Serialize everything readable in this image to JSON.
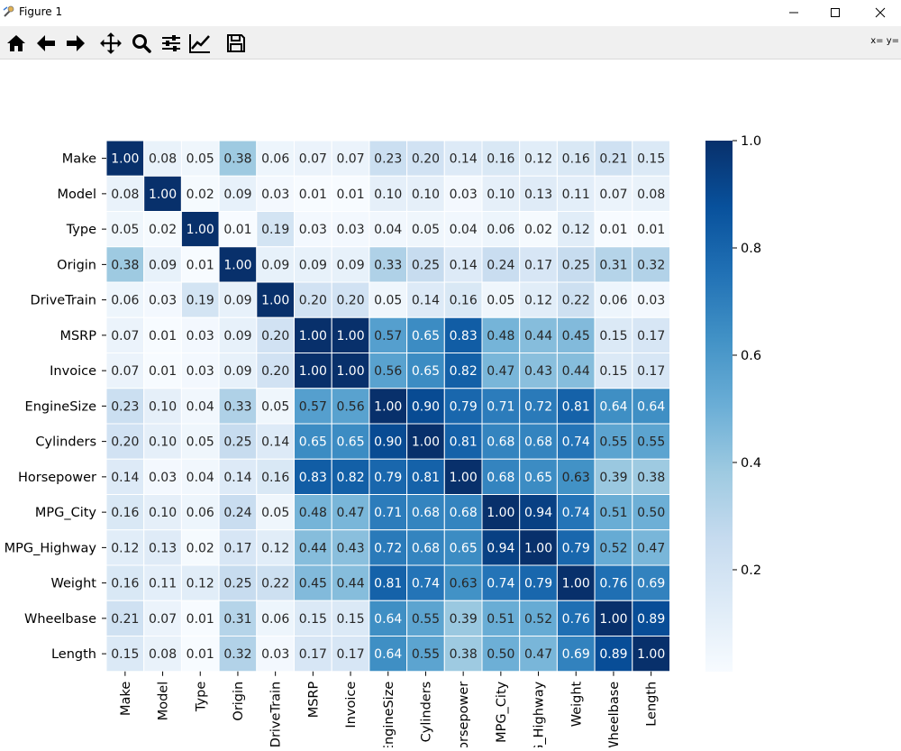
{
  "window": {
    "title": "Figure 1",
    "coord_readout": "x= y="
  },
  "toolbar": {
    "tools": [
      "home-icon",
      "back-arrow-icon",
      "forward-arrow-icon",
      "pan-icon",
      "zoom-icon",
      "configure-subplots-icon",
      "edit-axis-icon",
      "save-icon"
    ]
  },
  "chart_data": {
    "type": "heatmap",
    "colormap": "Blues",
    "colors": {
      "low": "#f7fbff",
      "high": "#08306b"
    },
    "row_labels": [
      "Make",
      "Model",
      "Type",
      "Origin",
      "DriveTrain",
      "MSRP",
      "Invoice",
      "EngineSize",
      "Cylinders",
      "Horsepower",
      "MPG_City",
      "MPG_Highway",
      "Weight",
      "Wheelbase",
      "Length"
    ],
    "col_labels": [
      "Make",
      "Model",
      "Type",
      "Origin",
      "DriveTrain",
      "MSRP",
      "Invoice",
      "EngineSize",
      "Cylinders",
      "Horsepower",
      "MPG_City",
      "MPG_Highway",
      "Weight",
      "Wheelbase",
      "Length"
    ],
    "values": [
      [
        1.0,
        0.08,
        0.05,
        0.38,
        0.06,
        0.07,
        0.07,
        0.23,
        0.2,
        0.14,
        0.16,
        0.12,
        0.16,
        0.21,
        0.15
      ],
      [
        0.08,
        1.0,
        0.02,
        0.09,
        0.03,
        0.01,
        0.01,
        0.1,
        0.1,
        0.03,
        0.1,
        0.13,
        0.11,
        0.07,
        0.08
      ],
      [
        0.05,
        0.02,
        1.0,
        0.01,
        0.19,
        0.03,
        0.03,
        0.04,
        0.05,
        0.04,
        0.06,
        0.02,
        0.12,
        0.01,
        0.01
      ],
      [
        0.38,
        0.09,
        0.01,
        1.0,
        0.09,
        0.09,
        0.09,
        0.33,
        0.25,
        0.14,
        0.24,
        0.17,
        0.25,
        0.31,
        0.32
      ],
      [
        0.06,
        0.03,
        0.19,
        0.09,
        1.0,
        0.2,
        0.2,
        0.05,
        0.14,
        0.16,
        0.05,
        0.12,
        0.22,
        0.06,
        0.03
      ],
      [
        0.07,
        0.01,
        0.03,
        0.09,
        0.2,
        1.0,
        1.0,
        0.57,
        0.65,
        0.83,
        0.48,
        0.44,
        0.45,
        0.15,
        0.17
      ],
      [
        0.07,
        0.01,
        0.03,
        0.09,
        0.2,
        1.0,
        1.0,
        0.56,
        0.65,
        0.82,
        0.47,
        0.43,
        0.44,
        0.15,
        0.17
      ],
      [
        0.23,
        0.1,
        0.04,
        0.33,
        0.05,
        0.57,
        0.56,
        1.0,
        0.9,
        0.79,
        0.71,
        0.72,
        0.81,
        0.64,
        0.64
      ],
      [
        0.2,
        0.1,
        0.05,
        0.25,
        0.14,
        0.65,
        0.65,
        0.9,
        1.0,
        0.81,
        0.68,
        0.68,
        0.74,
        0.55,
        0.55
      ],
      [
        0.14,
        0.03,
        0.04,
        0.14,
        0.16,
        0.83,
        0.82,
        0.79,
        0.81,
        1.0,
        0.68,
        0.65,
        0.63,
        0.39,
        0.38
      ],
      [
        0.16,
        0.1,
        0.06,
        0.24,
        0.05,
        0.48,
        0.47,
        0.71,
        0.68,
        0.68,
        1.0,
        0.94,
        0.74,
        0.51,
        0.5
      ],
      [
        0.12,
        0.13,
        0.02,
        0.17,
        0.12,
        0.44,
        0.43,
        0.72,
        0.68,
        0.65,
        0.94,
        1.0,
        0.79,
        0.52,
        0.47
      ],
      [
        0.16,
        0.11,
        0.12,
        0.25,
        0.22,
        0.45,
        0.44,
        0.81,
        0.74,
        0.63,
        0.74,
        0.79,
        1.0,
        0.76,
        0.69
      ],
      [
        0.21,
        0.07,
        0.01,
        0.31,
        0.06,
        0.15,
        0.15,
        0.64,
        0.55,
        0.39,
        0.51,
        0.52,
        0.76,
        1.0,
        0.89
      ],
      [
        0.15,
        0.08,
        0.01,
        0.32,
        0.03,
        0.17,
        0.17,
        0.64,
        0.55,
        0.38,
        0.5,
        0.47,
        0.69,
        0.89,
        1.0
      ]
    ],
    "annotation_format": "2 decimals",
    "colorbar": {
      "range": [
        0.01,
        1.0
      ],
      "ticks": [
        0.2,
        0.4,
        0.6,
        0.8,
        1.0
      ],
      "tick_labels": [
        "0.2",
        "0.4",
        "0.6",
        "0.8",
        "1.0"
      ]
    },
    "title": "",
    "xlabel": "",
    "ylabel": ""
  }
}
